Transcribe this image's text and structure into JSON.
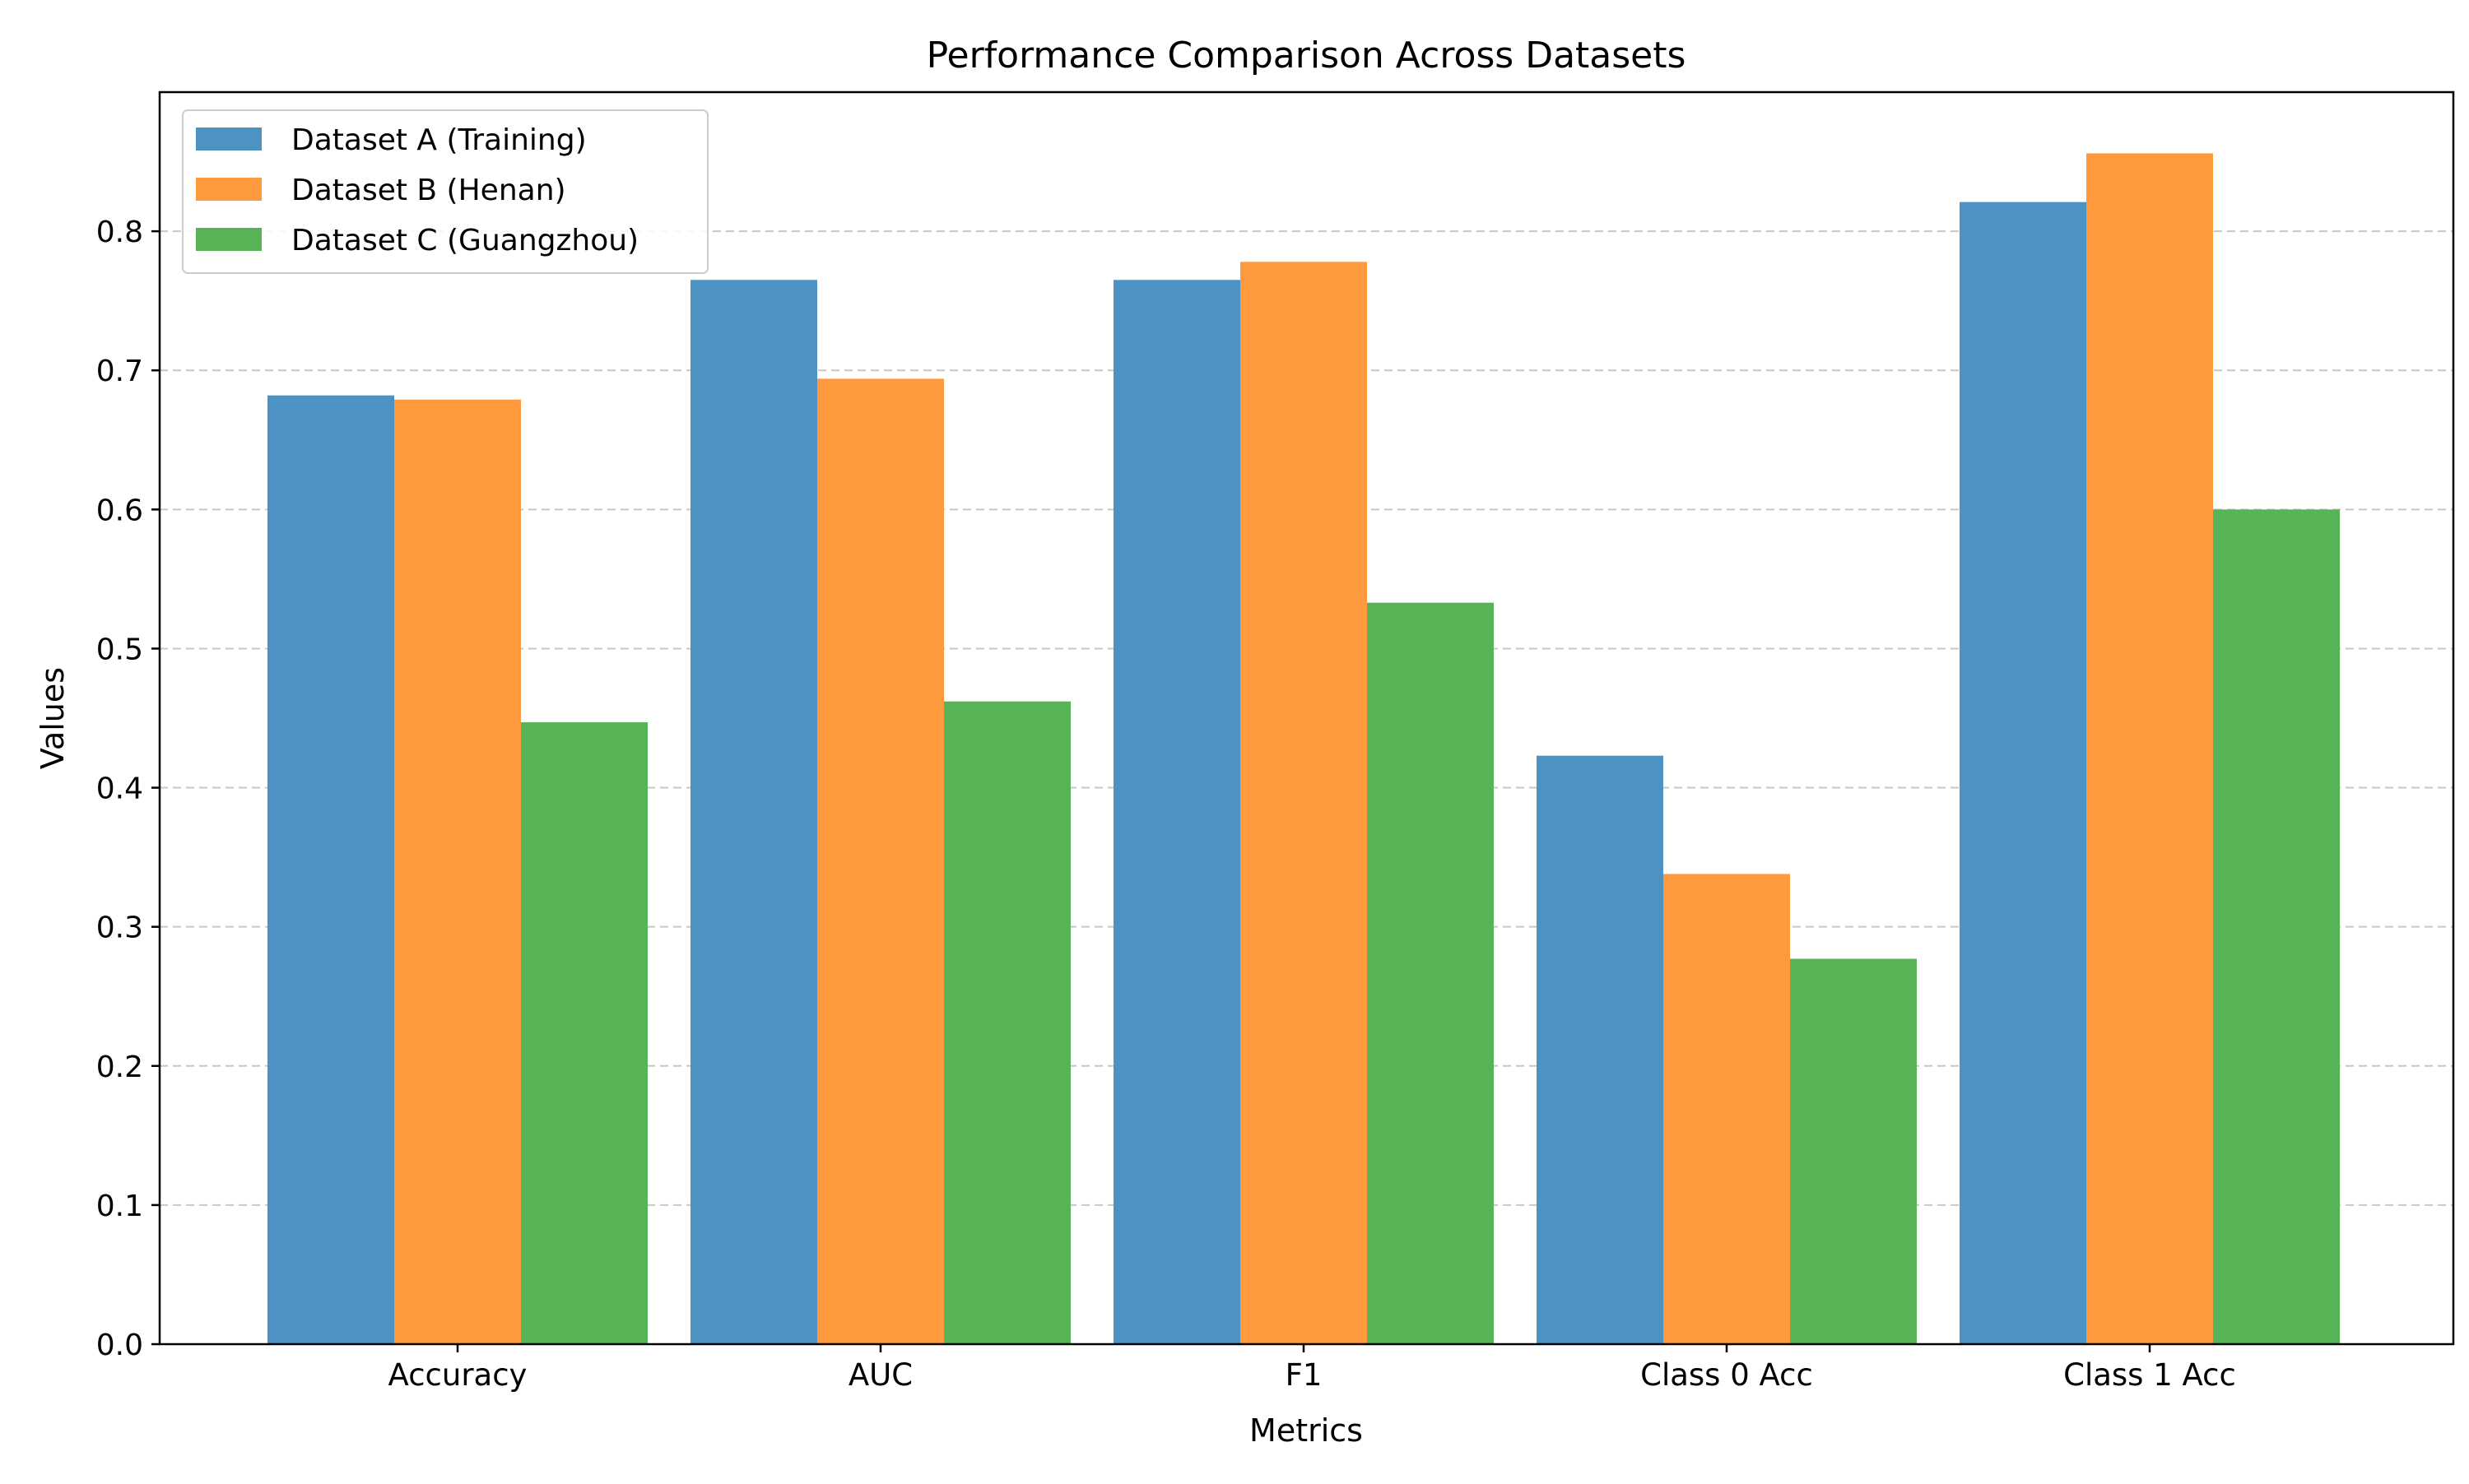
{
  "chart_data": {
    "type": "bar",
    "title": "Performance Comparison Across Datasets",
    "xlabel": "Metrics",
    "ylabel": "Values",
    "categories": [
      "Accuracy",
      "AUC",
      "F1",
      "Class 0 Acc",
      "Class 1 Acc"
    ],
    "series": [
      {
        "name": "Dataset A (Training)",
        "color": "#4c92c3",
        "values": [
          0.682,
          0.765,
          0.765,
          0.423,
          0.821
        ]
      },
      {
        "name": "Dataset B (Henan)",
        "color": "#ff993e",
        "values": [
          0.679,
          0.694,
          0.778,
          0.338,
          0.856
        ]
      },
      {
        "name": "Dataset C (Guangzhou)",
        "color": "#56b356",
        "values": [
          0.447,
          0.462,
          0.533,
          0.277,
          0.6
        ]
      }
    ],
    "ylim": [
      0,
      0.9
    ],
    "yticks": [
      "0.0",
      "0.1",
      "0.2",
      "0.3",
      "0.4",
      "0.5",
      "0.6",
      "0.7",
      "0.8"
    ],
    "grid": "y dashed",
    "legend_position": "top-left"
  }
}
